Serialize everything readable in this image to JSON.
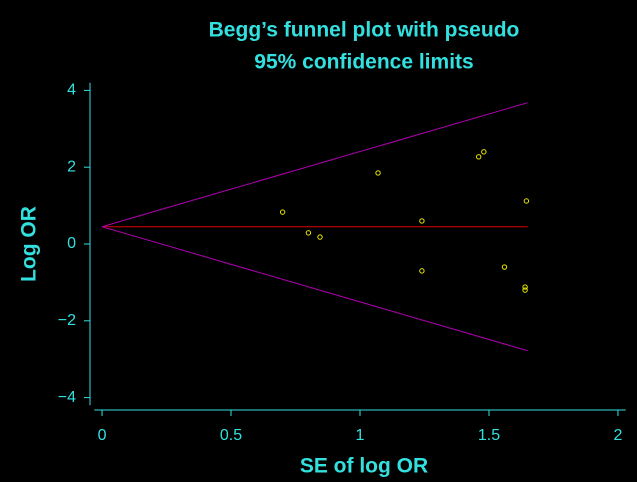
{
  "chart_data": {
    "type": "scatter",
    "title": [
      "Begg’s funnel plot with pseudo",
      "95% confidence limits"
    ],
    "x_label": "SE of log OR",
    "y_label": "Log OR",
    "xlim": [
      -0.03,
      2.03
    ],
    "ylim": [
      -4.2,
      4.2
    ],
    "xticks": [
      0,
      0.5,
      1,
      1.5,
      2
    ],
    "yticks": [
      {
        "value": -4,
        "label": "−4"
      },
      {
        "value": -2,
        "label": "−2"
      },
      0,
      2,
      4
    ],
    "series": [
      {
        "color": "#e8e800",
        "x": [
          0.7,
          0.8,
          0.845,
          1.07,
          1.24,
          1.24,
          1.46,
          1.48,
          1.56,
          1.64,
          1.64,
          1.645
        ],
        "values": [
          0.83,
          0.29,
          0.18,
          1.85,
          0.6,
          -0.7,
          2.27,
          2.4,
          -0.6,
          -1.12,
          -1.2,
          1.12
        ]
      }
    ],
    "lines": [
      {
        "color": "#e00000",
        "x": [
          0,
          1.65
        ],
        "values": [
          0.45,
          0.45
        ]
      },
      {
        "color": "#b000b0",
        "x": [
          0,
          1.65
        ],
        "values": [
          0.45,
          3.68
        ]
      },
      {
        "color": "#b000b0",
        "x": [
          0,
          1.65
        ],
        "values": [
          0.45,
          -2.78
        ]
      }
    ]
  }
}
